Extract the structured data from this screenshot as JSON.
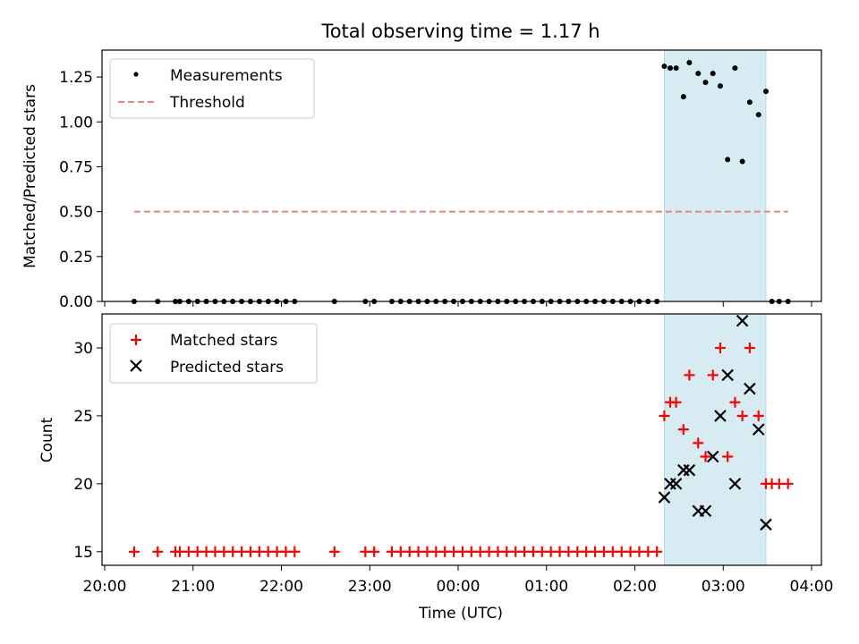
{
  "figure": {
    "title": "Total observing time = 1.17 h"
  },
  "chart_data": [
    {
      "type": "scatter",
      "ylabel": "Matched/Predicted stars",
      "xlabel": "",
      "xlim": [
        "20:00",
        "04:00"
      ],
      "ylim": [
        0.0,
        1.4
      ],
      "y_ticks": [
        "0.00",
        "0.25",
        "0.50",
        "0.75",
        "1.00",
        "1.25"
      ],
      "highlight_span": [
        "02:20",
        "03:29"
      ],
      "legend_position": "upper-left",
      "series": [
        {
          "name": "Measurements",
          "marker": "dot",
          "color": "#000000",
          "x": [
            "20:20",
            "20:36",
            "20:48",
            "20:51",
            "20:57",
            "21:03",
            "21:09",
            "21:15",
            "21:21",
            "21:27",
            "21:33",
            "21:39",
            "21:45",
            "21:51",
            "21:57",
            "22:03",
            "22:09",
            "22:36",
            "22:57",
            "23:03",
            "23:15",
            "23:21",
            "23:27",
            "23:33",
            "23:39",
            "23:45",
            "23:51",
            "23:57",
            "00:03",
            "00:09",
            "00:15",
            "00:21",
            "00:27",
            "00:33",
            "00:39",
            "00:45",
            "00:51",
            "00:57",
            "01:03",
            "01:09",
            "01:15",
            "01:21",
            "01:27",
            "01:33",
            "01:39",
            "01:45",
            "01:51",
            "01:57",
            "02:03",
            "02:09",
            "02:15",
            "02:20",
            "02:24",
            "02:28",
            "02:33",
            "02:37",
            "02:43",
            "02:48",
            "02:53",
            "02:58",
            "03:03",
            "03:08",
            "03:13",
            "03:18",
            "03:24",
            "03:29",
            "03:33",
            "03:38",
            "03:44"
          ],
          "y": [
            0,
            0,
            0,
            0,
            0,
            0,
            0,
            0,
            0,
            0,
            0,
            0,
            0,
            0,
            0,
            0,
            0,
            0,
            0,
            0,
            0,
            0,
            0,
            0,
            0,
            0,
            0,
            0,
            0,
            0,
            0,
            0,
            0,
            0,
            0,
            0,
            0,
            0,
            0,
            0,
            0,
            0,
            0,
            0,
            0,
            0,
            0,
            0,
            0,
            0,
            0,
            1.31,
            1.3,
            1.3,
            1.14,
            1.33,
            1.27,
            1.22,
            1.27,
            1.2,
            0.79,
            1.3,
            0.78,
            1.11,
            1.04,
            1.17,
            0,
            0,
            0
          ]
        },
        {
          "name": "Threshold",
          "style": "dashed",
          "color": "#f08080",
          "x": [
            "20:20",
            "03:44"
          ],
          "y": [
            0.5,
            0.5
          ]
        }
      ]
    },
    {
      "type": "scatter",
      "ylabel": "Count",
      "xlabel": "Time (UTC)",
      "xlim": [
        "20:00",
        "04:00"
      ],
      "ylim": [
        14.0,
        32.5
      ],
      "y_ticks": [
        "15",
        "20",
        "25",
        "30"
      ],
      "x_ticks": [
        "20:00",
        "21:00",
        "22:00",
        "23:00",
        "00:00",
        "01:00",
        "02:00",
        "03:00",
        "04:00"
      ],
      "highlight_span": [
        "02:20",
        "03:29"
      ],
      "legend_position": "upper-left",
      "series": [
        {
          "name": "Matched stars",
          "marker": "plus",
          "color": "#ff0000",
          "x": [
            "20:20",
            "20:36",
            "20:48",
            "20:51",
            "20:57",
            "21:03",
            "21:09",
            "21:15",
            "21:21",
            "21:27",
            "21:33",
            "21:39",
            "21:45",
            "21:51",
            "21:57",
            "22:03",
            "22:09",
            "22:36",
            "22:57",
            "23:03",
            "23:15",
            "23:21",
            "23:27",
            "23:33",
            "23:39",
            "23:45",
            "23:51",
            "23:57",
            "00:03",
            "00:09",
            "00:15",
            "00:21",
            "00:27",
            "00:33",
            "00:39",
            "00:45",
            "00:51",
            "00:57",
            "01:03",
            "01:09",
            "01:15",
            "01:21",
            "01:27",
            "01:33",
            "01:39",
            "01:45",
            "01:51",
            "01:57",
            "02:03",
            "02:09",
            "02:15",
            "02:20",
            "02:24",
            "02:28",
            "02:33",
            "02:37",
            "02:43",
            "02:48",
            "02:53",
            "02:58",
            "03:03",
            "03:08",
            "03:13",
            "03:18",
            "03:24",
            "03:29",
            "03:33",
            "03:38",
            "03:44"
          ],
          "y": [
            15,
            15,
            15,
            15,
            15,
            15,
            15,
            15,
            15,
            15,
            15,
            15,
            15,
            15,
            15,
            15,
            15,
            15,
            15,
            15,
            15,
            15,
            15,
            15,
            15,
            15,
            15,
            15,
            15,
            15,
            15,
            15,
            15,
            15,
            15,
            15,
            15,
            15,
            15,
            15,
            15,
            15,
            15,
            15,
            15,
            15,
            15,
            15,
            15,
            15,
            15,
            25,
            26,
            26,
            24,
            28,
            23,
            22,
            28,
            30,
            22,
            26,
            25,
            30,
            25,
            20,
            20,
            20,
            20
          ]
        },
        {
          "name": "Predicted stars",
          "marker": "x",
          "color": "#000000",
          "x": [
            "02:20",
            "02:24",
            "02:28",
            "02:33",
            "02:37",
            "02:43",
            "02:48",
            "02:53",
            "02:58",
            "03:03",
            "03:08",
            "03:13",
            "03:18",
            "03:24",
            "03:29"
          ],
          "y": [
            19,
            20,
            20,
            21,
            21,
            18,
            18,
            22,
            25,
            28,
            20,
            32,
            27,
            24,
            17
          ]
        }
      ]
    }
  ]
}
